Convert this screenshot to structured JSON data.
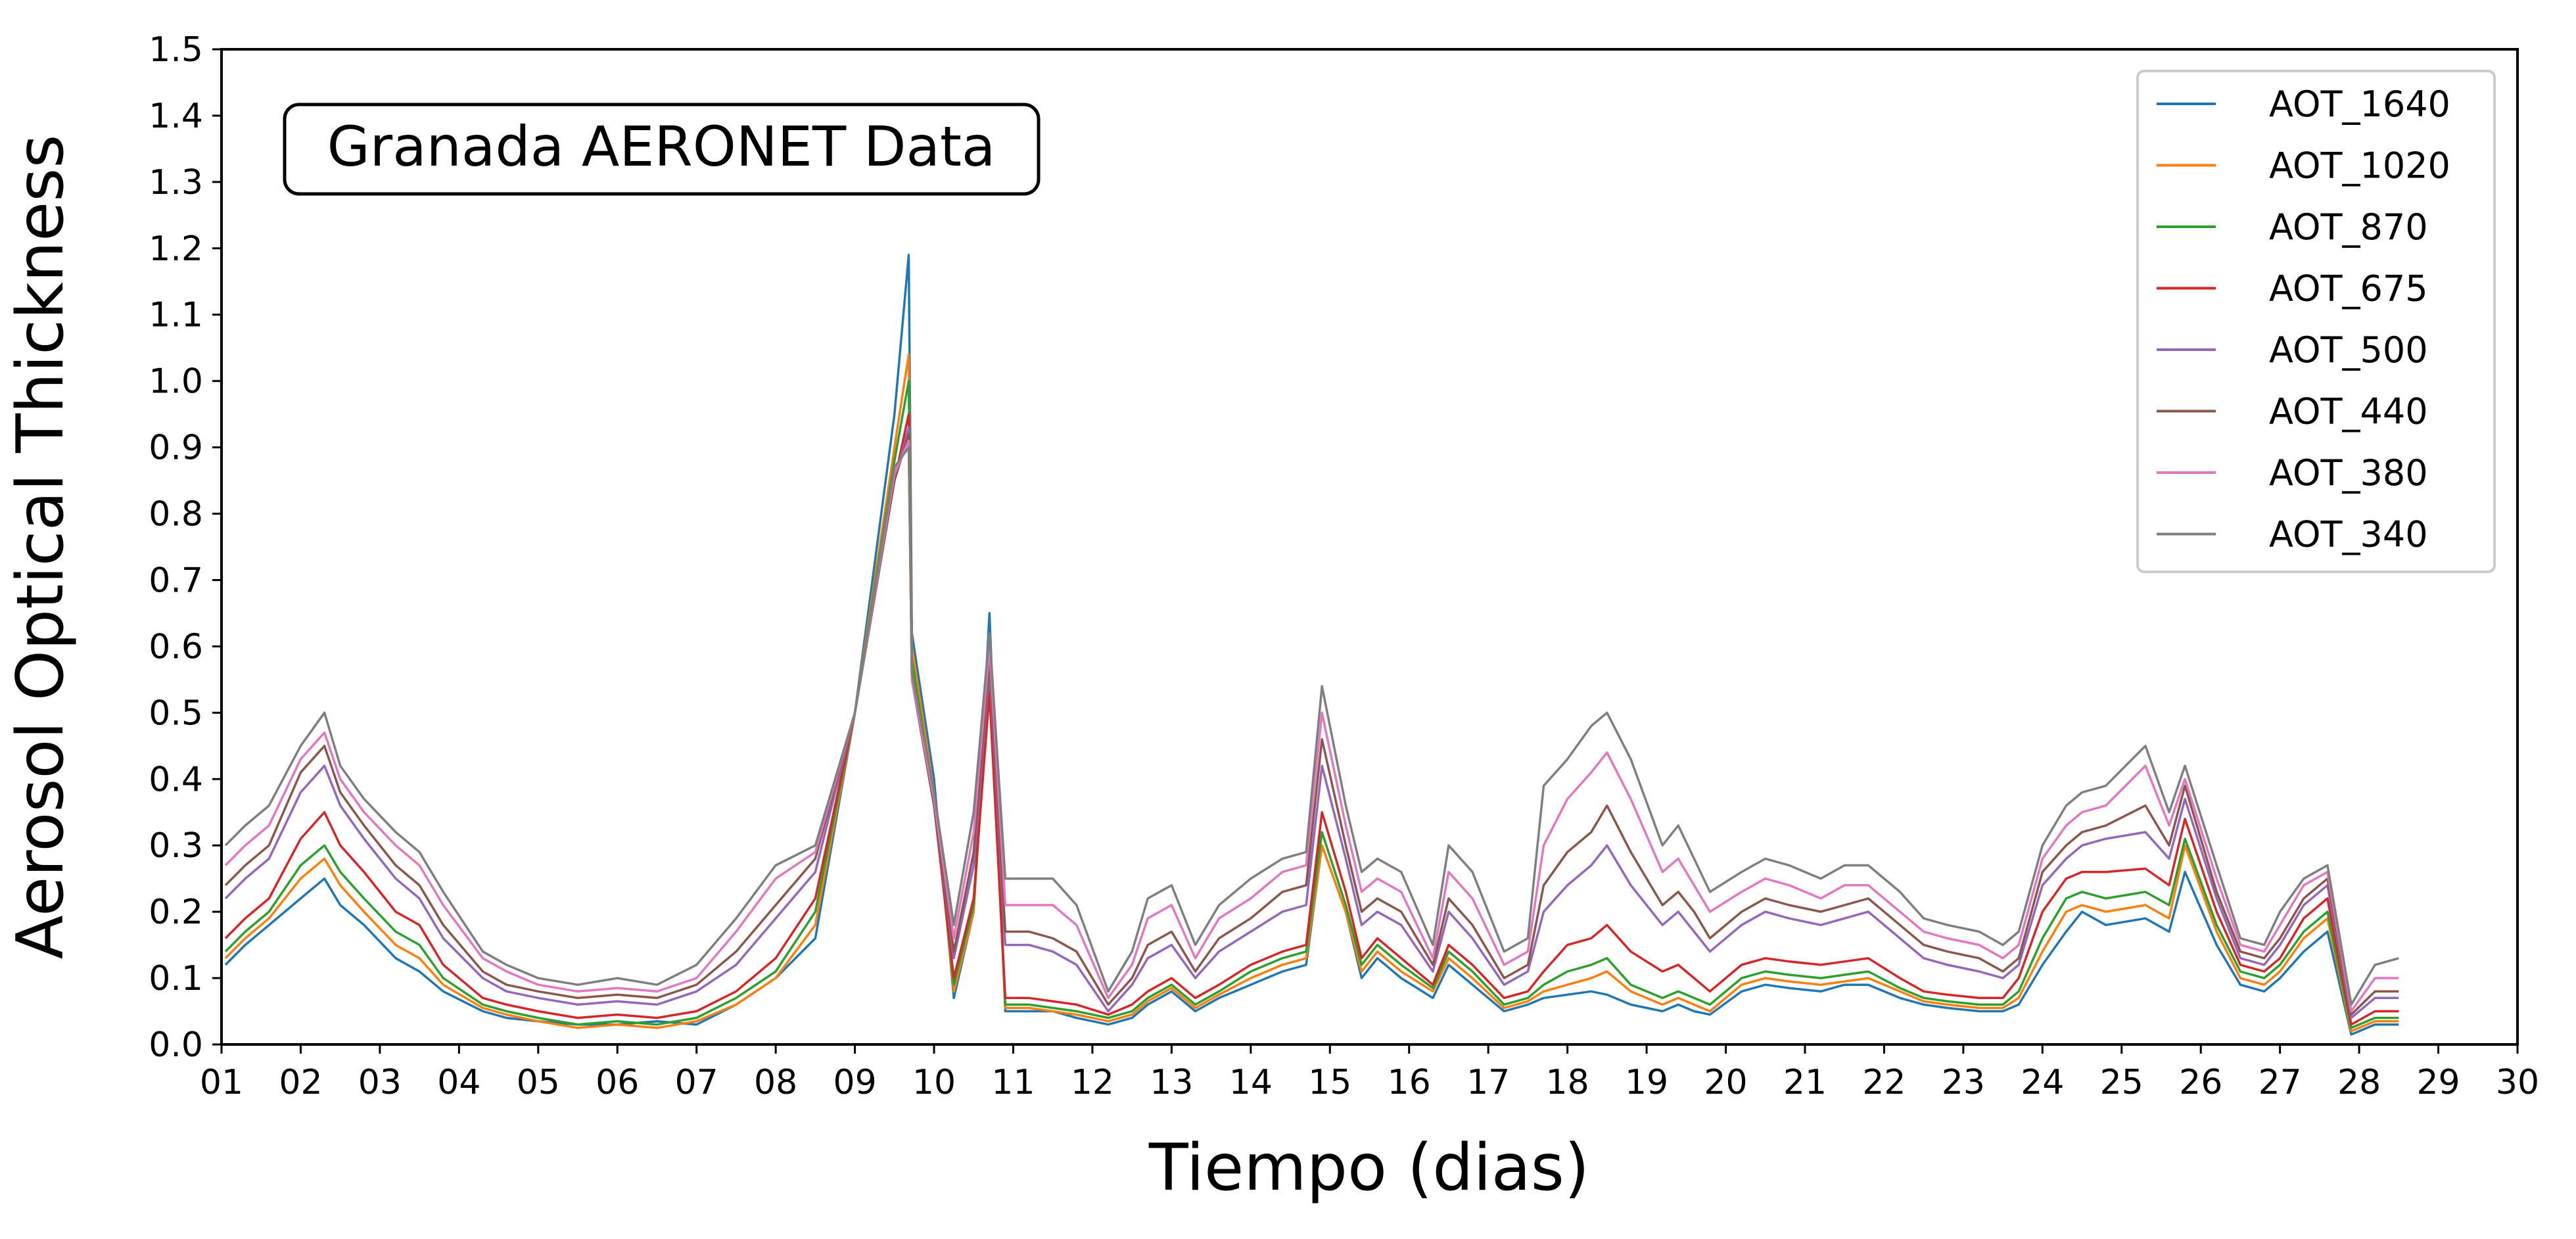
{
  "chart_data": {
    "type": "line",
    "title": "",
    "annotation": "Granada AERONET Data",
    "xlabel": "Tiempo (dias)",
    "ylabel": "Aerosol Optical Thickness",
    "xlim": [
      1,
      30
    ],
    "ylim": [
      0,
      1.5
    ],
    "x_ticks": [
      "01",
      "02",
      "03",
      "04",
      "05",
      "06",
      "07",
      "08",
      "09",
      "10",
      "11",
      "12",
      "13",
      "14",
      "15",
      "16",
      "17",
      "18",
      "19",
      "20",
      "21",
      "22",
      "23",
      "24",
      "25",
      "26",
      "27",
      "28",
      "29",
      "30"
    ],
    "y_ticks": [
      "0.0",
      "0.1",
      "0.2",
      "0.3",
      "0.4",
      "0.5",
      "0.6",
      "0.7",
      "0.8",
      "0.9",
      "1.0",
      "1.1",
      "1.2",
      "1.3",
      "1.4",
      "1.5"
    ],
    "grid": false,
    "legend_position": "top-right",
    "x": [
      1.05,
      1.3,
      1.6,
      2.0,
      2.3,
      2.5,
      2.8,
      3.2,
      3.5,
      3.8,
      4.3,
      4.6,
      5.0,
      5.5,
      6.0,
      6.5,
      7.0,
      7.5,
      8.0,
      8.5,
      9.0,
      9.5,
      9.68,
      9.72,
      10.0,
      10.25,
      10.5,
      10.7,
      10.9,
      11.2,
      11.5,
      11.8,
      12.2,
      12.5,
      12.7,
      13.0,
      13.3,
      13.6,
      14.0,
      14.4,
      14.7,
      14.9,
      15.2,
      15.4,
      15.6,
      15.9,
      16.3,
      16.5,
      16.8,
      17.2,
      17.5,
      17.7,
      18.0,
      18.3,
      18.5,
      18.8,
      19.2,
      19.4,
      19.6,
      19.8,
      20.2,
      20.5,
      20.8,
      21.2,
      21.5,
      21.8,
      22.2,
      22.5,
      22.8,
      23.2,
      23.5,
      23.7,
      24.0,
      24.3,
      24.5,
      24.8,
      25.3,
      25.6,
      25.8,
      26.2,
      26.5,
      26.8,
      27.0,
      27.3,
      27.6,
      27.9,
      28.2,
      28.5
    ],
    "series": [
      {
        "name": "AOT_1640",
        "color": "#1f77b4",
        "values": [
          0.12,
          0.15,
          0.18,
          0.22,
          0.25,
          0.21,
          0.18,
          0.13,
          0.11,
          0.08,
          0.05,
          0.04,
          0.035,
          0.03,
          0.03,
          0.035,
          0.03,
          0.06,
          0.1,
          0.16,
          0.5,
          0.95,
          1.19,
          0.62,
          0.4,
          0.07,
          0.2,
          0.65,
          0.05,
          0.05,
          0.05,
          0.04,
          0.03,
          0.04,
          0.06,
          0.08,
          0.05,
          0.07,
          0.09,
          0.11,
          0.12,
          0.3,
          0.2,
          0.1,
          0.13,
          0.1,
          0.07,
          0.12,
          0.09,
          0.05,
          0.06,
          0.07,
          0.075,
          0.08,
          0.075,
          0.06,
          0.05,
          0.06,
          0.05,
          0.045,
          0.08,
          0.09,
          0.085,
          0.08,
          0.09,
          0.09,
          0.07,
          0.06,
          0.055,
          0.05,
          0.05,
          0.06,
          0.12,
          0.17,
          0.2,
          0.18,
          0.19,
          0.17,
          0.26,
          0.15,
          0.09,
          0.08,
          0.1,
          0.14,
          0.17,
          0.015,
          0.03,
          0.03
        ]
      },
      {
        "name": "AOT_1020",
        "color": "#ff7f0e",
        "values": [
          0.13,
          0.16,
          0.19,
          0.25,
          0.28,
          0.24,
          0.2,
          0.15,
          0.13,
          0.09,
          0.055,
          0.045,
          0.035,
          0.025,
          0.03,
          0.025,
          0.035,
          0.06,
          0.1,
          0.18,
          0.5,
          0.9,
          1.04,
          0.6,
          0.38,
          0.08,
          0.2,
          0.58,
          0.055,
          0.055,
          0.05,
          0.045,
          0.035,
          0.045,
          0.065,
          0.085,
          0.055,
          0.075,
          0.1,
          0.12,
          0.13,
          0.3,
          0.2,
          0.11,
          0.14,
          0.11,
          0.08,
          0.13,
          0.1,
          0.055,
          0.065,
          0.08,
          0.09,
          0.1,
          0.11,
          0.08,
          0.06,
          0.07,
          0.06,
          0.05,
          0.09,
          0.1,
          0.095,
          0.09,
          0.095,
          0.1,
          0.08,
          0.065,
          0.06,
          0.055,
          0.055,
          0.07,
          0.14,
          0.2,
          0.21,
          0.2,
          0.21,
          0.19,
          0.3,
          0.17,
          0.1,
          0.09,
          0.11,
          0.16,
          0.19,
          0.02,
          0.035,
          0.035
        ]
      },
      {
        "name": "AOT_870",
        "color": "#2ca02c",
        "values": [
          0.14,
          0.17,
          0.2,
          0.27,
          0.3,
          0.26,
          0.22,
          0.17,
          0.15,
          0.1,
          0.06,
          0.05,
          0.04,
          0.03,
          0.035,
          0.03,
          0.04,
          0.07,
          0.11,
          0.2,
          0.5,
          0.88,
          1.0,
          0.58,
          0.37,
          0.09,
          0.21,
          0.55,
          0.06,
          0.06,
          0.055,
          0.05,
          0.04,
          0.05,
          0.07,
          0.09,
          0.06,
          0.08,
          0.11,
          0.13,
          0.14,
          0.32,
          0.21,
          0.12,
          0.15,
          0.12,
          0.085,
          0.14,
          0.11,
          0.06,
          0.07,
          0.09,
          0.11,
          0.12,
          0.13,
          0.09,
          0.07,
          0.08,
          0.07,
          0.06,
          0.1,
          0.11,
          0.105,
          0.1,
          0.105,
          0.11,
          0.085,
          0.07,
          0.065,
          0.06,
          0.06,
          0.08,
          0.16,
          0.22,
          0.23,
          0.22,
          0.23,
          0.21,
          0.31,
          0.18,
          0.11,
          0.1,
          0.12,
          0.17,
          0.2,
          0.025,
          0.04,
          0.04
        ]
      },
      {
        "name": "AOT_675",
        "color": "#d62728",
        "values": [
          0.16,
          0.19,
          0.22,
          0.31,
          0.35,
          0.3,
          0.26,
          0.2,
          0.18,
          0.12,
          0.07,
          0.06,
          0.05,
          0.04,
          0.045,
          0.04,
          0.05,
          0.08,
          0.13,
          0.22,
          0.5,
          0.85,
          0.95,
          0.56,
          0.36,
          0.1,
          0.22,
          0.53,
          0.07,
          0.07,
          0.065,
          0.06,
          0.045,
          0.06,
          0.08,
          0.1,
          0.07,
          0.09,
          0.12,
          0.14,
          0.15,
          0.35,
          0.23,
          0.13,
          0.16,
          0.13,
          0.09,
          0.15,
          0.12,
          0.07,
          0.08,
          0.11,
          0.15,
          0.16,
          0.18,
          0.14,
          0.11,
          0.12,
          0.1,
          0.08,
          0.12,
          0.13,
          0.125,
          0.12,
          0.125,
          0.13,
          0.1,
          0.08,
          0.075,
          0.07,
          0.07,
          0.1,
          0.2,
          0.25,
          0.26,
          0.26,
          0.265,
          0.24,
          0.34,
          0.2,
          0.12,
          0.11,
          0.13,
          0.19,
          0.22,
          0.03,
          0.05,
          0.05
        ]
      },
      {
        "name": "AOT_500",
        "color": "#9467bd",
        "values": [
          0.22,
          0.25,
          0.28,
          0.38,
          0.42,
          0.36,
          0.31,
          0.25,
          0.22,
          0.16,
          0.1,
          0.08,
          0.07,
          0.06,
          0.065,
          0.06,
          0.08,
          0.12,
          0.19,
          0.26,
          0.5,
          0.85,
          0.93,
          0.55,
          0.36,
          0.13,
          0.27,
          0.57,
          0.15,
          0.15,
          0.14,
          0.12,
          0.05,
          0.09,
          0.13,
          0.15,
          0.1,
          0.14,
          0.17,
          0.2,
          0.21,
          0.42,
          0.28,
          0.18,
          0.2,
          0.18,
          0.11,
          0.2,
          0.16,
          0.09,
          0.11,
          0.2,
          0.24,
          0.27,
          0.3,
          0.24,
          0.18,
          0.2,
          0.17,
          0.14,
          0.18,
          0.2,
          0.19,
          0.18,
          0.19,
          0.2,
          0.16,
          0.13,
          0.12,
          0.11,
          0.1,
          0.12,
          0.24,
          0.28,
          0.3,
          0.31,
          0.32,
          0.28,
          0.37,
          0.22,
          0.13,
          0.12,
          0.15,
          0.21,
          0.24,
          0.04,
          0.07,
          0.07
        ]
      },
      {
        "name": "AOT_440",
        "color": "#8c564b",
        "values": [
          0.24,
          0.27,
          0.3,
          0.41,
          0.45,
          0.38,
          0.33,
          0.27,
          0.24,
          0.18,
          0.11,
          0.09,
          0.08,
          0.07,
          0.075,
          0.07,
          0.09,
          0.14,
          0.21,
          0.28,
          0.5,
          0.85,
          0.92,
          0.55,
          0.36,
          0.14,
          0.29,
          0.58,
          0.17,
          0.17,
          0.16,
          0.14,
          0.06,
          0.1,
          0.15,
          0.17,
          0.11,
          0.16,
          0.19,
          0.23,
          0.24,
          0.46,
          0.3,
          0.2,
          0.22,
          0.2,
          0.12,
          0.22,
          0.18,
          0.1,
          0.12,
          0.24,
          0.29,
          0.32,
          0.36,
          0.29,
          0.21,
          0.23,
          0.2,
          0.16,
          0.2,
          0.22,
          0.21,
          0.2,
          0.21,
          0.22,
          0.18,
          0.15,
          0.14,
          0.13,
          0.11,
          0.13,
          0.26,
          0.3,
          0.32,
          0.33,
          0.36,
          0.3,
          0.39,
          0.23,
          0.14,
          0.13,
          0.16,
          0.22,
          0.25,
          0.045,
          0.08,
          0.08
        ]
      },
      {
        "name": "AOT_380",
        "color": "#e377c2",
        "values": [
          0.27,
          0.3,
          0.33,
          0.43,
          0.47,
          0.4,
          0.35,
          0.3,
          0.27,
          0.21,
          0.13,
          0.11,
          0.09,
          0.08,
          0.085,
          0.08,
          0.1,
          0.17,
          0.25,
          0.29,
          0.5,
          0.86,
          0.91,
          0.55,
          0.37,
          0.16,
          0.32,
          0.6,
          0.21,
          0.21,
          0.21,
          0.18,
          0.07,
          0.12,
          0.19,
          0.21,
          0.13,
          0.19,
          0.22,
          0.26,
          0.27,
          0.5,
          0.33,
          0.23,
          0.25,
          0.23,
          0.13,
          0.26,
          0.22,
          0.12,
          0.14,
          0.3,
          0.37,
          0.41,
          0.44,
          0.37,
          0.26,
          0.28,
          0.24,
          0.2,
          0.23,
          0.25,
          0.24,
          0.22,
          0.24,
          0.24,
          0.2,
          0.17,
          0.16,
          0.15,
          0.13,
          0.15,
          0.28,
          0.33,
          0.35,
          0.36,
          0.42,
          0.33,
          0.4,
          0.25,
          0.15,
          0.14,
          0.18,
          0.24,
          0.26,
          0.05,
          0.1,
          0.1
        ]
      },
      {
        "name": "AOT_340",
        "color": "#7f7f7f",
        "values": [
          0.3,
          0.33,
          0.36,
          0.45,
          0.5,
          0.42,
          0.37,
          0.32,
          0.29,
          0.23,
          0.14,
          0.12,
          0.1,
          0.09,
          0.1,
          0.09,
          0.12,
          0.19,
          0.27,
          0.3,
          0.5,
          0.87,
          0.9,
          0.56,
          0.38,
          0.18,
          0.35,
          0.62,
          0.25,
          0.25,
          0.25,
          0.21,
          0.08,
          0.14,
          0.22,
          0.24,
          0.15,
          0.21,
          0.25,
          0.28,
          0.29,
          0.54,
          0.36,
          0.26,
          0.28,
          0.26,
          0.15,
          0.3,
          0.26,
          0.14,
          0.16,
          0.39,
          0.43,
          0.48,
          0.5,
          0.43,
          0.3,
          0.33,
          0.28,
          0.23,
          0.26,
          0.28,
          0.27,
          0.25,
          0.27,
          0.27,
          0.23,
          0.19,
          0.18,
          0.17,
          0.15,
          0.17,
          0.3,
          0.36,
          0.38,
          0.39,
          0.45,
          0.35,
          0.42,
          0.27,
          0.16,
          0.15,
          0.2,
          0.25,
          0.27,
          0.06,
          0.12,
          0.13
        ]
      }
    ]
  }
}
